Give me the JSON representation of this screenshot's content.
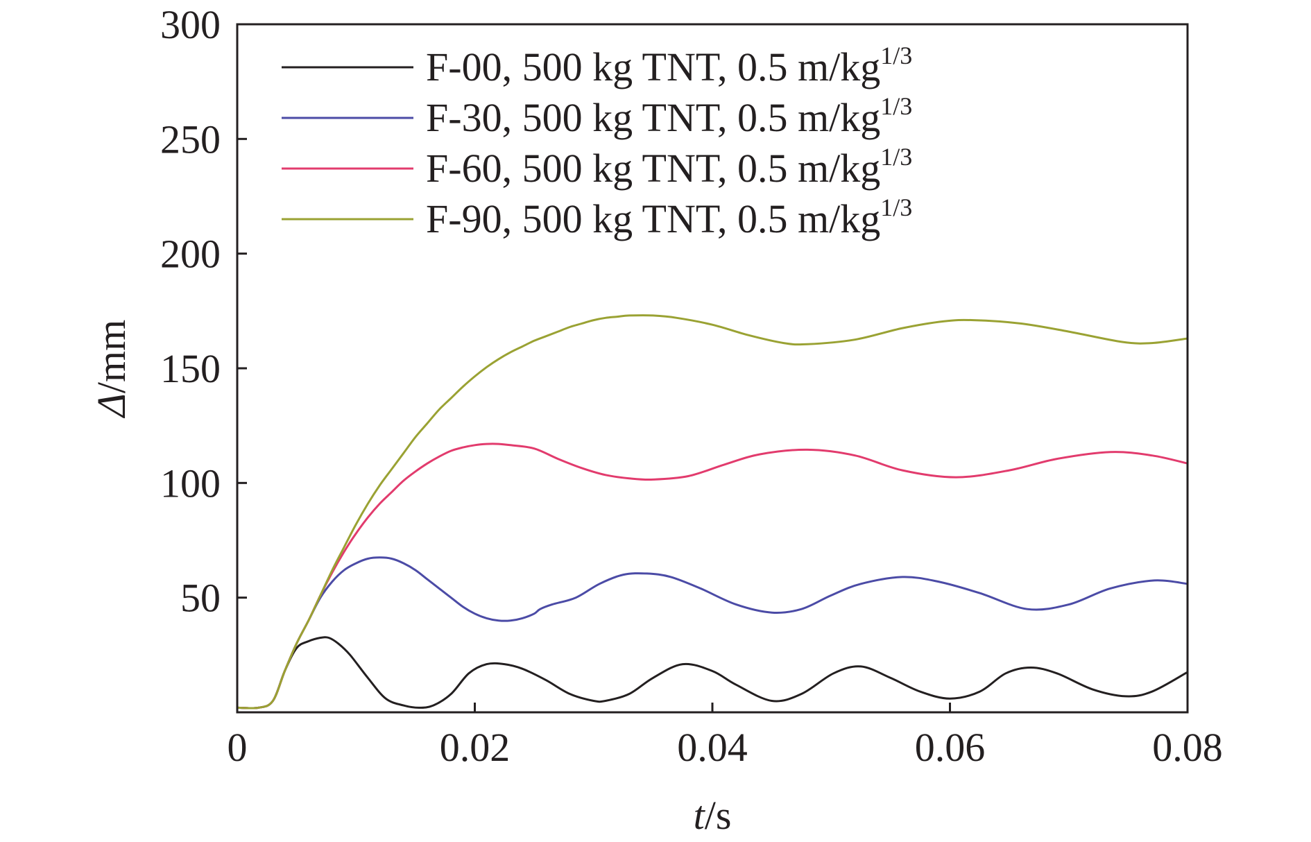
{
  "chart_data": {
    "type": "line",
    "title": "",
    "xlabel": {
      "italic": "t",
      "rest": "/s"
    },
    "ylabel": {
      "italic": "Δ",
      "rest": "/mm"
    },
    "xlim": [
      0,
      0.08
    ],
    "ylim": [
      0,
      300
    ],
    "xticks": [
      0,
      0.02,
      0.04,
      0.06,
      0.08
    ],
    "xtick_labels": [
      "0",
      "0.02",
      "0.04",
      "0.06",
      "0.08"
    ],
    "yticks": [
      50,
      100,
      150,
      200,
      250,
      300
    ],
    "ytick_labels": [
      "50",
      "100",
      "150",
      "200",
      "250",
      "300"
    ],
    "grid": false,
    "legend_position": "top",
    "series": [
      {
        "name": "F-00, 500 kg TNT, 0.5 m/kg",
        "name_sup": "1/3",
        "color": "#231f20",
        "x": [
          0,
          0.0018,
          0.003,
          0.004,
          0.005,
          0.006,
          0.007,
          0.0077,
          0.0085,
          0.0095,
          0.011,
          0.0125,
          0.014,
          0.0153,
          0.0165,
          0.018,
          0.0195,
          0.021,
          0.0225,
          0.024,
          0.026,
          0.028,
          0.03,
          0.031,
          0.033,
          0.035,
          0.0375,
          0.04,
          0.042,
          0.045,
          0.0475,
          0.0502,
          0.0525,
          0.055,
          0.0575,
          0.06,
          0.0625,
          0.0647,
          0.0668,
          0.069,
          0.072,
          0.0748,
          0.077,
          0.08
        ],
        "y": [
          2,
          2,
          5,
          18,
          28,
          31,
          32.5,
          32.5,
          30,
          25,
          15,
          6,
          3,
          2,
          3,
          8,
          17,
          21,
          21,
          19,
          14,
          8,
          5,
          5,
          8,
          15,
          21,
          18,
          12,
          5,
          8,
          17,
          20,
          15,
          9,
          6,
          9,
          17,
          19.5,
          17,
          10,
          7,
          9,
          17.5
        ]
      },
      {
        "name": "F-30, 500 kg TNT, 0.5 m/kg",
        "name_sup": "1/3",
        "color": "#4b4ba6",
        "x": [
          0,
          0.0018,
          0.003,
          0.004,
          0.005,
          0.006,
          0.007,
          0.008,
          0.009,
          0.01,
          0.011,
          0.012,
          0.013,
          0.014,
          0.015,
          0.016,
          0.017,
          0.018,
          0.019,
          0.02,
          0.021,
          0.022,
          0.023,
          0.024,
          0.025,
          0.0255,
          0.0265,
          0.0285,
          0.0305,
          0.0325,
          0.0345,
          0.0365,
          0.039,
          0.042,
          0.045,
          0.0475,
          0.05,
          0.0525,
          0.056,
          0.059,
          0.0625,
          0.0665,
          0.07,
          0.0735,
          0.0772,
          0.08
        ],
        "y": [
          2,
          2,
          5,
          18,
          30,
          40,
          50,
          57,
          62,
          65,
          67,
          67.5,
          67,
          65,
          62,
          58,
          54,
          50,
          46,
          43,
          41,
          40,
          40,
          41,
          43,
          45,
          47,
          50,
          56,
          60,
          60.5,
          59,
          54,
          47,
          43.5,
          45,
          51,
          56,
          59,
          57,
          52,
          45,
          47,
          54,
          57.5,
          56
        ]
      },
      {
        "name": "F-60, 500 kg TNT, 0.5 m/kg",
        "name_sup": "1/3",
        "color": "#e23b6d",
        "x": [
          0,
          0.0018,
          0.003,
          0.004,
          0.005,
          0.006,
          0.007,
          0.008,
          0.009,
          0.01,
          0.011,
          0.012,
          0.013,
          0.014,
          0.015,
          0.016,
          0.017,
          0.018,
          0.019,
          0.02,
          0.021,
          0.022,
          0.023,
          0.025,
          0.027,
          0.029,
          0.031,
          0.033,
          0.035,
          0.038,
          0.041,
          0.044,
          0.048,
          0.052,
          0.056,
          0.0605,
          0.065,
          0.069,
          0.0735,
          0.077,
          0.08
        ],
        "y": [
          2,
          2,
          5,
          18,
          30,
          40,
          51,
          61,
          70,
          78,
          85,
          91,
          96,
          101,
          105,
          108.5,
          111.5,
          114,
          115.5,
          116.5,
          117,
          117,
          116.5,
          115,
          110.5,
          106.5,
          103.5,
          102,
          101.5,
          103,
          108,
          112.5,
          114.5,
          112,
          105.5,
          102.5,
          105.5,
          110.5,
          113.5,
          112,
          108.5
        ]
      },
      {
        "name": "F-90, 500 kg TNT, 0.5 m/kg",
        "name_sup": "1/3",
        "color": "#9aa233",
        "x": [
          0,
          0.0018,
          0.003,
          0.004,
          0.005,
          0.006,
          0.007,
          0.008,
          0.009,
          0.01,
          0.011,
          0.012,
          0.013,
          0.014,
          0.015,
          0.016,
          0.017,
          0.018,
          0.019,
          0.02,
          0.021,
          0.022,
          0.023,
          0.024,
          0.025,
          0.026,
          0.027,
          0.028,
          0.029,
          0.03,
          0.031,
          0.032,
          0.033,
          0.035,
          0.037,
          0.04,
          0.043,
          0.046,
          0.048,
          0.052,
          0.056,
          0.0595,
          0.062,
          0.066,
          0.07,
          0.0745,
          0.077,
          0.08
        ],
        "y": [
          2,
          2,
          5,
          18,
          30,
          40,
          51,
          62,
          72,
          82,
          91,
          99,
          106,
          113,
          120,
          126,
          132,
          137,
          142,
          146.5,
          150.5,
          154,
          157,
          159.5,
          162,
          164,
          166,
          168,
          169.5,
          171,
          172,
          172.5,
          173,
          173,
          172,
          169,
          164.5,
          161,
          160.5,
          162.5,
          167.5,
          170.5,
          171,
          169.5,
          166,
          161.5,
          161,
          163
        ]
      }
    ]
  }
}
